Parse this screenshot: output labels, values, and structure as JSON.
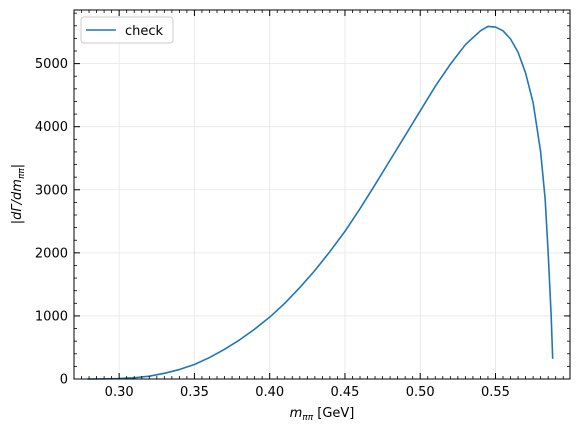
{
  "chart_data": {
    "type": "line",
    "xlabel_parts": {
      "base": "m",
      "sub": "ππ",
      "unit": " [GeV]"
    },
    "ylabel_parts": {
      "pre": "|dΓ/dm",
      "sub": "ππ",
      "post": "|"
    },
    "xlim": [
      0.27,
      0.5995
    ],
    "ylim": [
      0,
      5850
    ],
    "xticks": [
      0.3,
      0.35,
      0.4,
      0.45,
      0.5,
      0.55
    ],
    "xtick_labels": [
      "0.30",
      "0.35",
      "0.40",
      "0.45",
      "0.50",
      "0.55"
    ],
    "yticks": [
      0,
      1000,
      2000,
      3000,
      4000,
      5000
    ],
    "ytick_labels": [
      "0",
      "1000",
      "2000",
      "3000",
      "4000",
      "5000"
    ],
    "grid": true,
    "legend": {
      "placement": "top-left",
      "entries": [
        "check"
      ]
    },
    "series": [
      {
        "name": "check",
        "color": "#1f77b4",
        "x": [
          0.279,
          0.29,
          0.3,
          0.31,
          0.32,
          0.33,
          0.34,
          0.35,
          0.36,
          0.37,
          0.38,
          0.39,
          0.4,
          0.41,
          0.42,
          0.43,
          0.44,
          0.45,
          0.46,
          0.47,
          0.48,
          0.49,
          0.5,
          0.51,
          0.52,
          0.53,
          0.54,
          0.545,
          0.55,
          0.555,
          0.56,
          0.565,
          0.57,
          0.575,
          0.58,
          0.583,
          0.585,
          0.587,
          0.588
        ],
        "y": [
          0,
          2,
          8,
          20,
          45,
          90,
          150,
          230,
          340,
          470,
          620,
          790,
          980,
          1200,
          1450,
          1720,
          2020,
          2340,
          2700,
          3080,
          3470,
          3860,
          4250,
          4640,
          4990,
          5300,
          5520,
          5590,
          5580,
          5520,
          5390,
          5180,
          4850,
          4380,
          3600,
          2850,
          2000,
          1000,
          320
        ]
      }
    ]
  }
}
